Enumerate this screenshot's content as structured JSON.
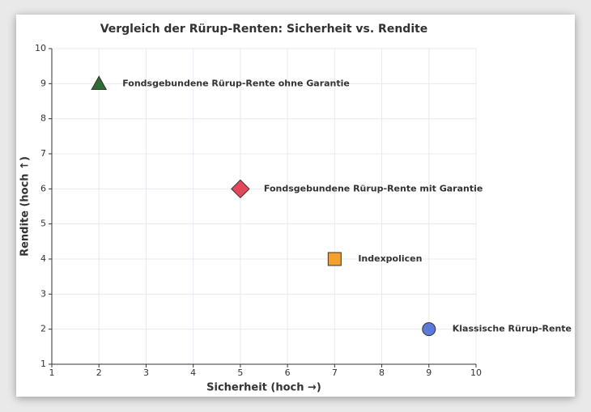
{
  "chart_data": {
    "type": "scatter",
    "title": "Vergleich der Rürup-Renten: Sicherheit vs. Rendite",
    "x_label": "Sicherheit (hoch →)",
    "y_label": "Rendite (hoch ↑)",
    "xlim": [
      1,
      10
    ],
    "ylim": [
      1,
      10
    ],
    "xticks": [
      1,
      2,
      3,
      4,
      5,
      6,
      7,
      8,
      9,
      10
    ],
    "yticks": [
      1,
      2,
      3,
      4,
      5,
      6,
      7,
      8,
      9,
      10
    ],
    "grid": true,
    "series": [
      {
        "name": "Fondsgebundene Rürup-Rente ohne Garantie",
        "color": "#2f6b35",
        "marker": "triangle",
        "x": [
          2
        ],
        "values": [
          9
        ]
      },
      {
        "name": "Fondsgebundene Rürup-Rente mit Garantie",
        "color": "#e2475a",
        "marker": "diamond",
        "x": [
          5
        ],
        "values": [
          6
        ]
      },
      {
        "name": "Indexpolicen",
        "color": "#f5a02e",
        "marker": "square",
        "x": [
          7
        ],
        "values": [
          4
        ]
      },
      {
        "name": "Klassische Rürup-Rente",
        "color": "#5b79d9",
        "marker": "circle",
        "x": [
          9
        ],
        "values": [
          2
        ]
      }
    ]
  }
}
